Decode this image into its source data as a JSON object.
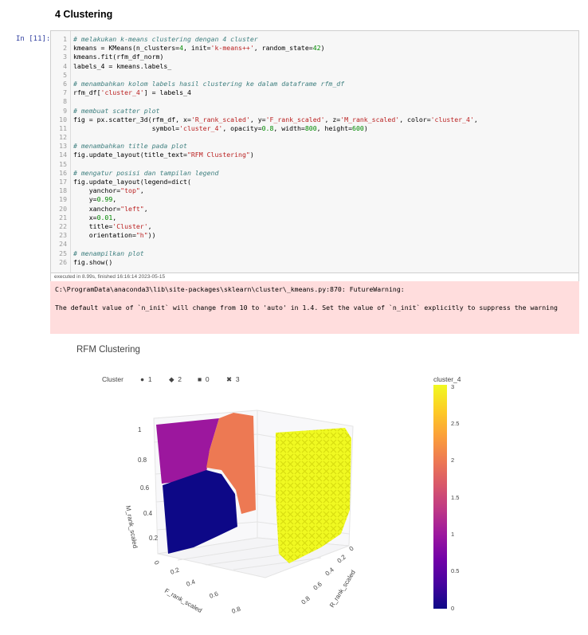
{
  "heading": "4 Clustering",
  "prompt": "In [11]:",
  "code_lines": [
    {
      "n": "1",
      "html": "<span class=\"cm\"># melakukan k-means clustering dengan 4 cluster</span>"
    },
    {
      "n": "2",
      "html": "kmeans = KMeans(n_clusters=<span class=\"num\">4</span>, init=<span class=\"str\">'k-means++'</span>, random_state=<span class=\"num\">42</span>)"
    },
    {
      "n": "3",
      "html": "kmeans.fit(rfm_df_norm)"
    },
    {
      "n": "4",
      "html": "labels_4 = kmeans.labels_"
    },
    {
      "n": "5",
      "html": ""
    },
    {
      "n": "6",
      "html": "<span class=\"cm\"># menambahkan kolom labels hasil clustering ke dalam dataframe rfm_df</span>"
    },
    {
      "n": "7",
      "html": "rfm_df[<span class=\"str\">'cluster_4'</span>] = labels_4"
    },
    {
      "n": "8",
      "html": ""
    },
    {
      "n": "9",
      "html": "<span class=\"cm\"># membuat scatter plot</span>"
    },
    {
      "n": "10",
      "html": "fig = px.scatter_3d(rfm_df, x=<span class=\"str\">'R_rank_scaled'</span>, y=<span class=\"str\">'F_rank_scaled'</span>, z=<span class=\"str\">'M_rank_scaled'</span>, color=<span class=\"str\">'cluster_4'</span>,"
    },
    {
      "n": "11",
      "html": "                    symbol=<span class=\"str\">'cluster_4'</span>, opacity=<span class=\"num\">0.8</span>, width=<span class=\"num\">800</span>, height=<span class=\"num\">600</span>)"
    },
    {
      "n": "12",
      "html": ""
    },
    {
      "n": "13",
      "html": "<span class=\"cm\"># menambahkan title pada plot</span>"
    },
    {
      "n": "14",
      "html": "fig.update_layout(title_text=<span class=\"str\">\"RFM Clustering\"</span>)"
    },
    {
      "n": "15",
      "html": ""
    },
    {
      "n": "16",
      "html": "<span class=\"cm\"># mengatur posisi dan tampilan legend</span>"
    },
    {
      "n": "17",
      "html": "fig.update_layout(legend=dict("
    },
    {
      "n": "18",
      "html": "    yanchor=<span class=\"str\">\"top\"</span>,"
    },
    {
      "n": "19",
      "html": "    y=<span class=\"num\">0.99</span>,"
    },
    {
      "n": "20",
      "html": "    xanchor=<span class=\"str\">\"left\"</span>,"
    },
    {
      "n": "21",
      "html": "    x=<span class=\"num\">0.01</span>,"
    },
    {
      "n": "22",
      "html": "    title=<span class=\"str\">'Cluster'</span>,"
    },
    {
      "n": "23",
      "html": "    orientation=<span class=\"str\">\"h\"</span>))"
    },
    {
      "n": "24",
      "html": ""
    },
    {
      "n": "25",
      "html": "<span class=\"cm\"># menampilkan plot</span>"
    },
    {
      "n": "26",
      "html": "fig.show()"
    }
  ],
  "exec_info": "executed in 8.99s, finished 16:16:14 2023-05-15",
  "warning_line1": "C:\\ProgramData\\anaconda3\\lib\\site-packages\\sklearn\\cluster\\_kmeans.py:870: FutureWarning:",
  "warning_line2": "The default value of `n_init` will change from 10 to 'auto' in 1.4. Set the value of `n_init` explicitly to suppress the warning",
  "plot": {
    "title": "RFM Clustering",
    "legend_title": "Cluster",
    "legend_items": [
      {
        "symbol": "●",
        "label": "1"
      },
      {
        "symbol": "◆",
        "label": "2"
      },
      {
        "symbol": "■",
        "label": "0"
      },
      {
        "symbol": "✖",
        "label": "3"
      }
    ],
    "colorbar_title": "cluster_4",
    "colorbar_ticks": [
      "3",
      "2.5",
      "2",
      "1.5",
      "1",
      "0.5",
      "0"
    ],
    "z_axis_title": "M_rank_scaled",
    "y_axis_title": "F_rank_scaled",
    "x_axis_title": "R_rank_scaled",
    "z_ticks": [
      "1",
      "0.8",
      "0.6",
      "0.4",
      "0.2",
      "0"
    ],
    "y_ticks": [
      "0.2",
      "0.4",
      "0.6",
      "0.8"
    ],
    "x_ticks": [
      "0",
      "0.2",
      "0.4",
      "0.6",
      "0.8"
    ],
    "cluster_colors": {
      "0": "#0d0887",
      "1": "#9c179e",
      "2": "#ed7953",
      "3": "#f0f921"
    }
  },
  "chart_data": {
    "type": "scatter",
    "title": "RFM Clustering",
    "xlabel": "R_rank_scaled",
    "ylabel": "F_rank_scaled",
    "zlabel": "M_rank_scaled",
    "color_scale_range": [
      0,
      3
    ],
    "legend_placement": "top-left, horizontal",
    "series": [
      {
        "name": "1",
        "symbol": "circle",
        "color": "#9c179e"
      },
      {
        "name": "2",
        "symbol": "diamond",
        "color": "#ed7953"
      },
      {
        "name": "0",
        "symbol": "square",
        "color": "#0d0887"
      },
      {
        "name": "3",
        "symbol": "x",
        "color": "#f0f921"
      }
    ]
  }
}
